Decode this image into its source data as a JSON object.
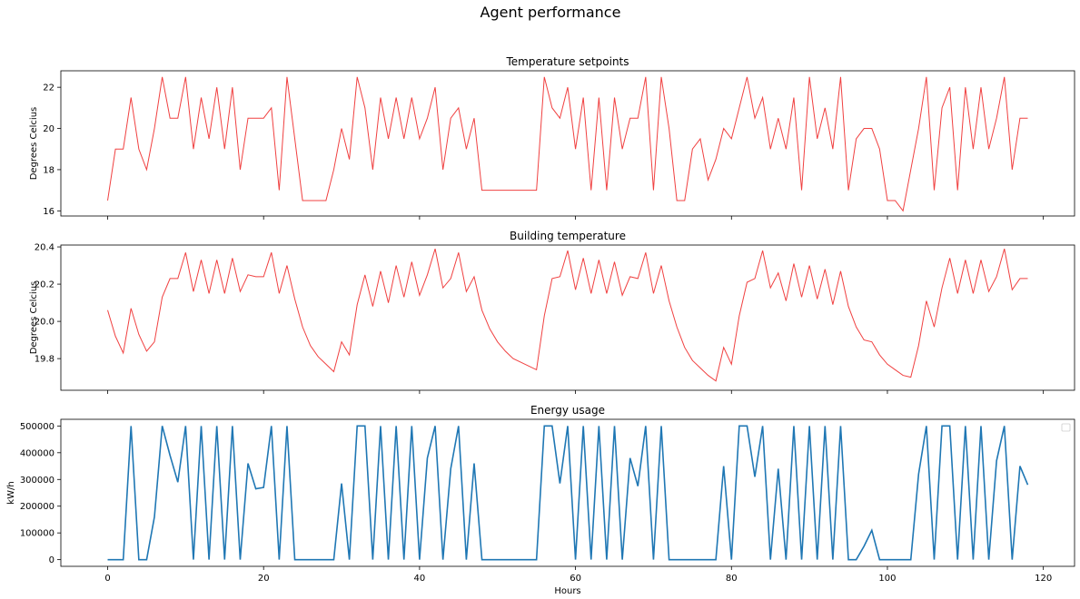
{
  "figure": {
    "title": "Agent performance"
  },
  "chart_data": [
    {
      "type": "line",
      "title": "Temperature setpoints",
      "xlabel": "",
      "ylabel": "Degrees Celcius",
      "xlim": [
        -6,
        124
      ],
      "ylim": [
        15.75,
        22.8
      ],
      "yticks": [
        16,
        18,
        20,
        22
      ],
      "xticks": [
        0,
        20,
        40,
        60,
        80,
        100,
        120
      ],
      "show_xtick_labels": false,
      "grid": false,
      "color": "#f04040",
      "x_start": 0,
      "x_step": 1,
      "values": [
        16.5,
        19,
        19,
        21.5,
        19,
        18,
        20,
        22.5,
        20.5,
        20.5,
        22.5,
        19,
        21.5,
        19.5,
        22,
        19,
        22,
        18,
        20.5,
        20.5,
        20.5,
        21,
        17,
        22.5,
        19.5,
        16.5,
        16.5,
        16.5,
        16.5,
        18,
        20,
        18.5,
        22.5,
        21,
        18,
        21.5,
        19.5,
        21.5,
        19.5,
        21.5,
        19.5,
        20.5,
        22,
        18,
        20.5,
        21,
        19,
        20.5,
        17,
        17,
        17,
        17,
        17,
        17,
        17,
        17,
        22.5,
        21,
        20.5,
        22,
        19,
        21.5,
        17,
        21.5,
        17,
        21.5,
        19,
        20.5,
        20.5,
        22.5,
        17,
        22.5,
        20,
        16.5,
        16.5,
        19,
        19.5,
        17.5,
        18.5,
        20,
        19.5,
        21,
        22.5,
        20.5,
        21.5,
        19,
        20.5,
        19,
        21.5,
        17,
        22.5,
        19.5,
        21,
        19,
        22.5,
        17,
        19.5,
        20,
        20,
        19,
        16.5,
        16.5,
        16,
        18,
        20,
        22.5,
        17,
        21,
        22,
        17,
        22,
        19,
        22,
        19,
        20.5,
        22.5,
        18,
        20.5,
        20.5
      ]
    },
    {
      "type": "line",
      "title": "Building temperature",
      "xlabel": "",
      "ylabel": "Degrees Celcius",
      "xlim": [
        -6,
        124
      ],
      "ylim": [
        19.63,
        20.41
      ],
      "yticks": [
        19.8,
        20.0,
        20.2,
        20.4
      ],
      "xticks": [
        0,
        20,
        40,
        60,
        80,
        100,
        120
      ],
      "show_xtick_labels": false,
      "grid": false,
      "color": "#f04040",
      "x_start": 0,
      "x_step": 1,
      "values": [
        20.06,
        19.92,
        19.83,
        20.07,
        19.93,
        19.84,
        19.89,
        20.13,
        20.23,
        20.23,
        20.37,
        20.16,
        20.33,
        20.15,
        20.33,
        20.15,
        20.34,
        20.16,
        20.25,
        20.24,
        20.24,
        20.37,
        20.15,
        20.3,
        20.12,
        19.97,
        19.87,
        19.81,
        19.77,
        19.73,
        19.89,
        19.82,
        20.09,
        20.25,
        20.08,
        20.27,
        20.1,
        20.3,
        20.13,
        20.32,
        20.14,
        20.25,
        20.39,
        20.18,
        20.23,
        20.37,
        20.16,
        20.24,
        20.06,
        19.96,
        19.89,
        19.84,
        19.8,
        19.78,
        19.76,
        19.74,
        20.03,
        20.23,
        20.24,
        20.38,
        20.17,
        20.34,
        20.15,
        20.33,
        20.15,
        20.32,
        20.14,
        20.24,
        20.23,
        20.37,
        20.15,
        20.3,
        20.11,
        19.97,
        19.86,
        19.79,
        19.75,
        19.71,
        19.68,
        19.86,
        19.77,
        20.03,
        20.21,
        20.23,
        20.38,
        20.18,
        20.26,
        20.11,
        20.31,
        20.13,
        20.3,
        20.12,
        20.28,
        20.09,
        20.27,
        20.08,
        19.97,
        19.9,
        19.89,
        19.82,
        19.77,
        19.74,
        19.71,
        19.7,
        19.87,
        20.11,
        19.97,
        20.18,
        20.34,
        20.15,
        20.33,
        20.15,
        20.33,
        20.16,
        20.24,
        20.39,
        20.17,
        20.23,
        20.23
      ]
    },
    {
      "type": "line",
      "title": "Energy usage",
      "xlabel": "Hours",
      "ylabel": "kW/h",
      "xlim": [
        -6,
        124
      ],
      "ylim": [
        -25000,
        525000
      ],
      "yticks": [
        0,
        100000,
        200000,
        300000,
        400000,
        500000
      ],
      "xticks": [
        0,
        20,
        40,
        60,
        80,
        100,
        120
      ],
      "show_xtick_labels": true,
      "grid": false,
      "legend": "top-right",
      "color": "#1f77b4",
      "x_start": 0,
      "x_step": 1,
      "values": [
        0,
        0,
        0,
        500000,
        0,
        0,
        160000,
        500000,
        390000,
        290000,
        500000,
        0,
        500000,
        0,
        500000,
        0,
        500000,
        0,
        360000,
        265000,
        270000,
        500000,
        0,
        500000,
        0,
        0,
        0,
        0,
        0,
        0,
        285000,
        0,
        500000,
        500000,
        0,
        500000,
        0,
        500000,
        0,
        500000,
        0,
        380000,
        500000,
        0,
        340000,
        500000,
        0,
        360000,
        0,
        0,
        0,
        0,
        0,
        0,
        0,
        0,
        500000,
        500000,
        285000,
        500000,
        0,
        500000,
        0,
        500000,
        0,
        500000,
        0,
        380000,
        275000,
        500000,
        0,
        500000,
        0,
        0,
        0,
        0,
        0,
        0,
        0,
        350000,
        0,
        500000,
        500000,
        310000,
        500000,
        0,
        340000,
        0,
        500000,
        0,
        500000,
        0,
        500000,
        0,
        500000,
        0,
        0,
        50000,
        110000,
        0,
        0,
        0,
        0,
        0,
        320000,
        500000,
        0,
        500000,
        500000,
        0,
        500000,
        0,
        500000,
        0,
        370000,
        500000,
        0,
        350000,
        280000
      ]
    }
  ]
}
